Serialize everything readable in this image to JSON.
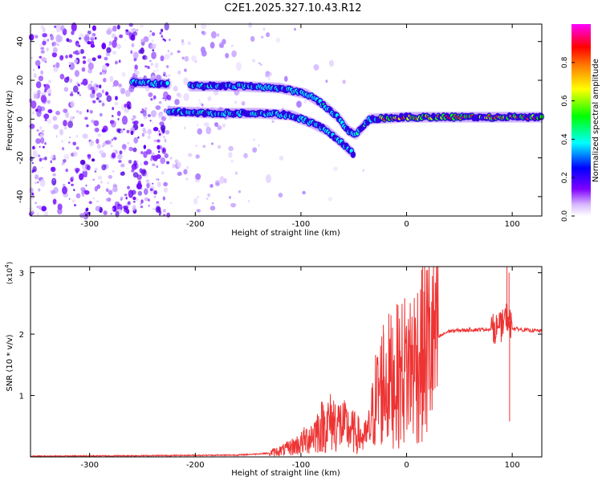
{
  "title": "C2E1.2025.327.10.43.R12",
  "chart_data": [
    {
      "type": "heatmap",
      "xlabel": "Height of straight line (km)",
      "ylabel": "Frequency (Hz)",
      "xlim": [
        -356,
        128
      ],
      "ylim": [
        -50,
        49
      ],
      "xticks": [
        -300,
        -200,
        -100,
        0,
        100
      ],
      "yticks": [
        -40,
        -20,
        0,
        20,
        40
      ],
      "colorbar": {
        "label": "Normalized spectral amplitude",
        "range": [
          0,
          1
        ],
        "ticks": [
          "0.0",
          "0.2",
          "0.4",
          "0.6",
          "0.8"
        ],
        "colors": [
          "#ffffff",
          "#8000ff",
          "#0000ff",
          "#00ffff",
          "#00ff00",
          "#ffff00",
          "#ff8000",
          "#ff0000",
          "#ff00ff"
        ]
      },
      "tracks": [
        {
          "name_visible": false,
          "points": [
            [
              -260,
              19
            ],
            [
              -225,
              18
            ]
          ]
        },
        {
          "name_visible": false,
          "points": [
            [
              -205,
              17
            ],
            [
              -160,
              17
            ],
            [
              -120,
              16
            ],
            [
              -95,
              13
            ],
            [
              -80,
              8
            ],
            [
              -65,
              1
            ],
            [
              -55,
              -6
            ],
            [
              -48,
              -8
            ],
            [
              -35,
              0
            ],
            [
              0,
              1
            ],
            [
              60,
              1
            ],
            [
              128,
              1
            ]
          ]
        },
        {
          "name_visible": false,
          "points": [
            [
              -225,
              4
            ],
            [
              -180,
              3
            ],
            [
              -140,
              3
            ],
            [
              -110,
              2
            ],
            [
              -90,
              -2
            ],
            [
              -75,
              -6
            ],
            [
              -62,
              -12
            ],
            [
              -50,
              -18
            ]
          ]
        }
      ]
    },
    {
      "type": "line",
      "xlabel": "Height of straight line (km)",
      "ylabel": "SNR (10 * v/v)",
      "multiplier": "(x10",
      "multiplier_exp": "4",
      "xlim": [
        -356,
        128
      ],
      "ylim": [
        0,
        3.1
      ],
      "xticks": [
        -300,
        -200,
        -100,
        0,
        100
      ],
      "yticks": [
        1,
        2,
        3
      ],
      "color": "#ee3333",
      "envelope": [
        [
          -356,
          0.01
        ],
        [
          -250,
          0.02
        ],
        [
          -160,
          0.03
        ],
        [
          -130,
          0.06
        ],
        [
          -115,
          0.12
        ],
        [
          -100,
          0.22
        ],
        [
          -90,
          0.35
        ],
        [
          -80,
          0.5
        ],
        [
          -70,
          0.58
        ],
        [
          -60,
          0.5
        ],
        [
          -50,
          0.4
        ],
        [
          -40,
          0.3
        ],
        [
          -35,
          0.45
        ],
        [
          -30,
          0.9
        ],
        [
          -25,
          1.1
        ],
        [
          -20,
          1.25
        ],
        [
          -15,
          1.25
        ],
        [
          -10,
          1.3
        ],
        [
          0,
          1.45
        ],
        [
          10,
          1.6
        ],
        [
          20,
          1.8
        ],
        [
          30,
          1.95
        ],
        [
          40,
          2.05
        ],
        [
          60,
          2.07
        ],
        [
          80,
          2.08
        ],
        [
          90,
          2.12
        ],
        [
          95,
          2.3
        ],
        [
          100,
          2.1
        ],
        [
          110,
          2.07
        ],
        [
          128,
          2.05
        ]
      ],
      "spikes": [
        [
          -22,
          2.15
        ],
        [
          -15,
          1.95
        ],
        [
          -8,
          2.05
        ],
        [
          0,
          2.0
        ],
        [
          95,
          3.1
        ],
        [
          97,
          3.0
        ],
        [
          97.5,
          0.58
        ]
      ]
    }
  ]
}
